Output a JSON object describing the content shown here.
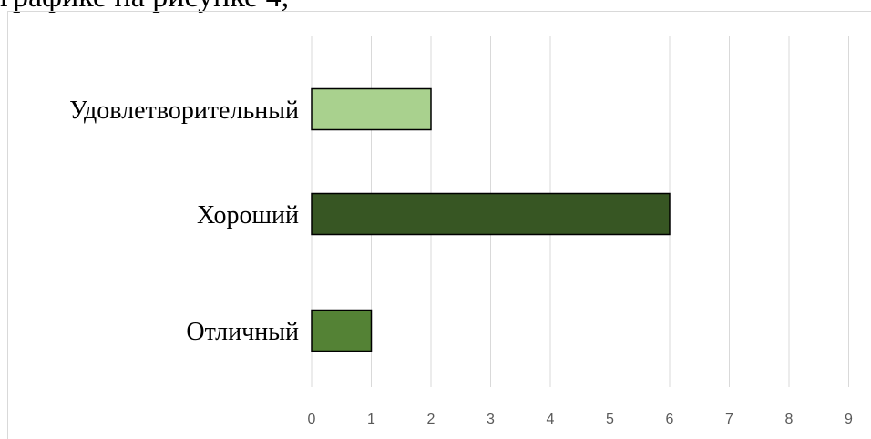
{
  "top_text_fragment": "графике на рисунке 4,",
  "chart_data": {
    "type": "bar",
    "orientation": "horizontal",
    "categories": [
      "Удовлетворительный",
      "Хороший",
      "Отличный"
    ],
    "values": [
      2,
      6,
      1
    ],
    "colors": [
      "#a9d18e",
      "#375623",
      "#548235"
    ],
    "xlim": [
      0,
      9
    ],
    "x_ticks": [
      "0",
      "1",
      "2",
      "3",
      "4",
      "5",
      "6",
      "7",
      "8",
      "9"
    ],
    "grid": true,
    "legend": "none"
  }
}
